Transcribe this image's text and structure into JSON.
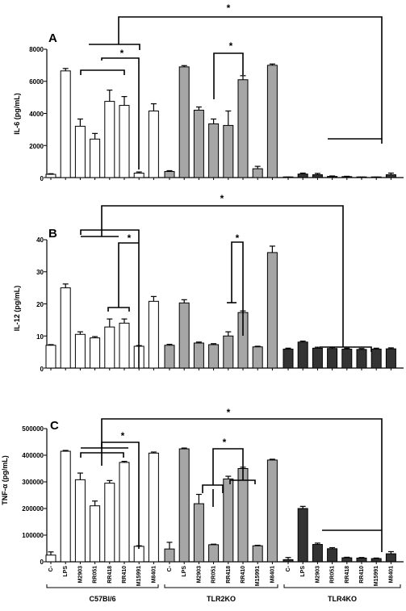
{
  "chart_data": [
    {
      "type": "bar",
      "panel_label": "A",
      "ylabel": "IL-6  (pg/mL)",
      "ylim": [
        0,
        8000
      ],
      "yticks": [
        "0",
        "2000",
        "4000",
        "6000",
        "8000"
      ],
      "categories": [
        "C-",
        "LPS",
        "M2903",
        "RR051",
        "RR418",
        "RR410",
        "M15991",
        "M8401"
      ],
      "series": [
        {
          "values": [
            200,
            6650,
            3200,
            2400,
            4750,
            4500,
            280,
            4150
          ],
          "errors": [
            40,
            150,
            450,
            350,
            700,
            550,
            70,
            450
          ],
          "color": "#ffffff"
        },
        {
          "values": [
            380,
            6900,
            4200,
            3350,
            3250,
            6100,
            550,
            7000
          ],
          "errors": [
            50,
            80,
            200,
            300,
            900,
            250,
            150,
            80
          ],
          "color": "#a6a6a6"
        },
        {
          "values": [
            20,
            220,
            180,
            70,
            60,
            20,
            20,
            180
          ],
          "errors": [
            10,
            60,
            80,
            30,
            20,
            10,
            10,
            100
          ],
          "color": "#333333"
        }
      ],
      "annotations": [
        "*",
        "*",
        "*"
      ]
    },
    {
      "type": "bar",
      "panel_label": "B",
      "ylabel": "IL-12  (pg/mL)",
      "ylim": [
        0,
        40
      ],
      "yticks": [
        "0",
        "10",
        "20",
        "30",
        "40"
      ],
      "categories": [
        "C-",
        "LPS",
        "M2903",
        "RR051",
        "RR418",
        "RR410",
        "M15991",
        "M8401"
      ],
      "series": [
        {
          "values": [
            7.1,
            25,
            10.5,
            9.4,
            12.8,
            14,
            6.8,
            20.8
          ],
          "errors": [
            0.2,
            1.2,
            0.8,
            0.4,
            2.5,
            1.3,
            0.2,
            1.5
          ],
          "color": "#ffffff"
        },
        {
          "values": [
            7.1,
            20.3,
            7.8,
            7.3,
            10,
            17.3,
            6.6,
            36
          ],
          "errors": [
            0.3,
            1,
            0.3,
            0.3,
            1.3,
            0.5,
            0.2,
            2
          ],
          "color": "#a6a6a6"
        },
        {
          "values": [
            5.9,
            8.1,
            6.2,
            6.1,
            5.9,
            5.8,
            5.9,
            6
          ],
          "errors": [
            0.3,
            0.3,
            0.3,
            0.3,
            0.3,
            0.3,
            0.3,
            0.3
          ],
          "color": "#333333"
        }
      ],
      "annotations": [
        "*",
        "*",
        "*"
      ]
    },
    {
      "type": "bar",
      "panel_label": "C",
      "ylabel": "TNF-α  (pg/mL)",
      "ylim": [
        0,
        500000
      ],
      "yticks": [
        "0",
        "100000",
        "200000",
        "300000",
        "400000",
        "500000"
      ],
      "categories": [
        "C-",
        "LPS",
        "M2903",
        "RR051",
        "RR418",
        "RR410",
        "M15991",
        "M8401"
      ],
      "series": [
        {
          "values": [
            25000,
            415000,
            308000,
            210000,
            295000,
            373000,
            58000,
            408000
          ],
          "errors": [
            12000,
            3000,
            25000,
            18000,
            10000,
            4000,
            2000,
            4000
          ],
          "color": "#ffffff"
        },
        {
          "values": [
            48000,
            424000,
            218000,
            64000,
            311000,
            350000,
            60000,
            382000
          ],
          "errors": [
            25000,
            3000,
            35000,
            2000,
            10000,
            5000,
            2000,
            3000
          ],
          "color": "#a6a6a6"
        },
        {
          "values": [
            8000,
            200000,
            65000,
            49000,
            15000,
            14000,
            12000,
            30000
          ],
          "errors": [
            8000,
            8000,
            5000,
            4000,
            2000,
            2000,
            2000,
            8000
          ],
          "color": "#333333"
        }
      ],
      "annotations": [
        "*",
        "*",
        "*"
      ]
    }
  ],
  "x_labels": [
    "C-",
    "LPS",
    "M2903",
    "RR051",
    "RR418",
    "RR410",
    "M15991",
    "M8401",
    "C-",
    "LPS",
    "M2903",
    "RR051",
    "RR418",
    "RR410",
    "M15991",
    "M8401",
    "C-",
    "LPS",
    "M2903",
    "RR051",
    "RR418",
    "RR410",
    "M15991",
    "M8401"
  ],
  "groups": [
    "C57Bl/6",
    "TLR2KO",
    "TLR4KO"
  ]
}
